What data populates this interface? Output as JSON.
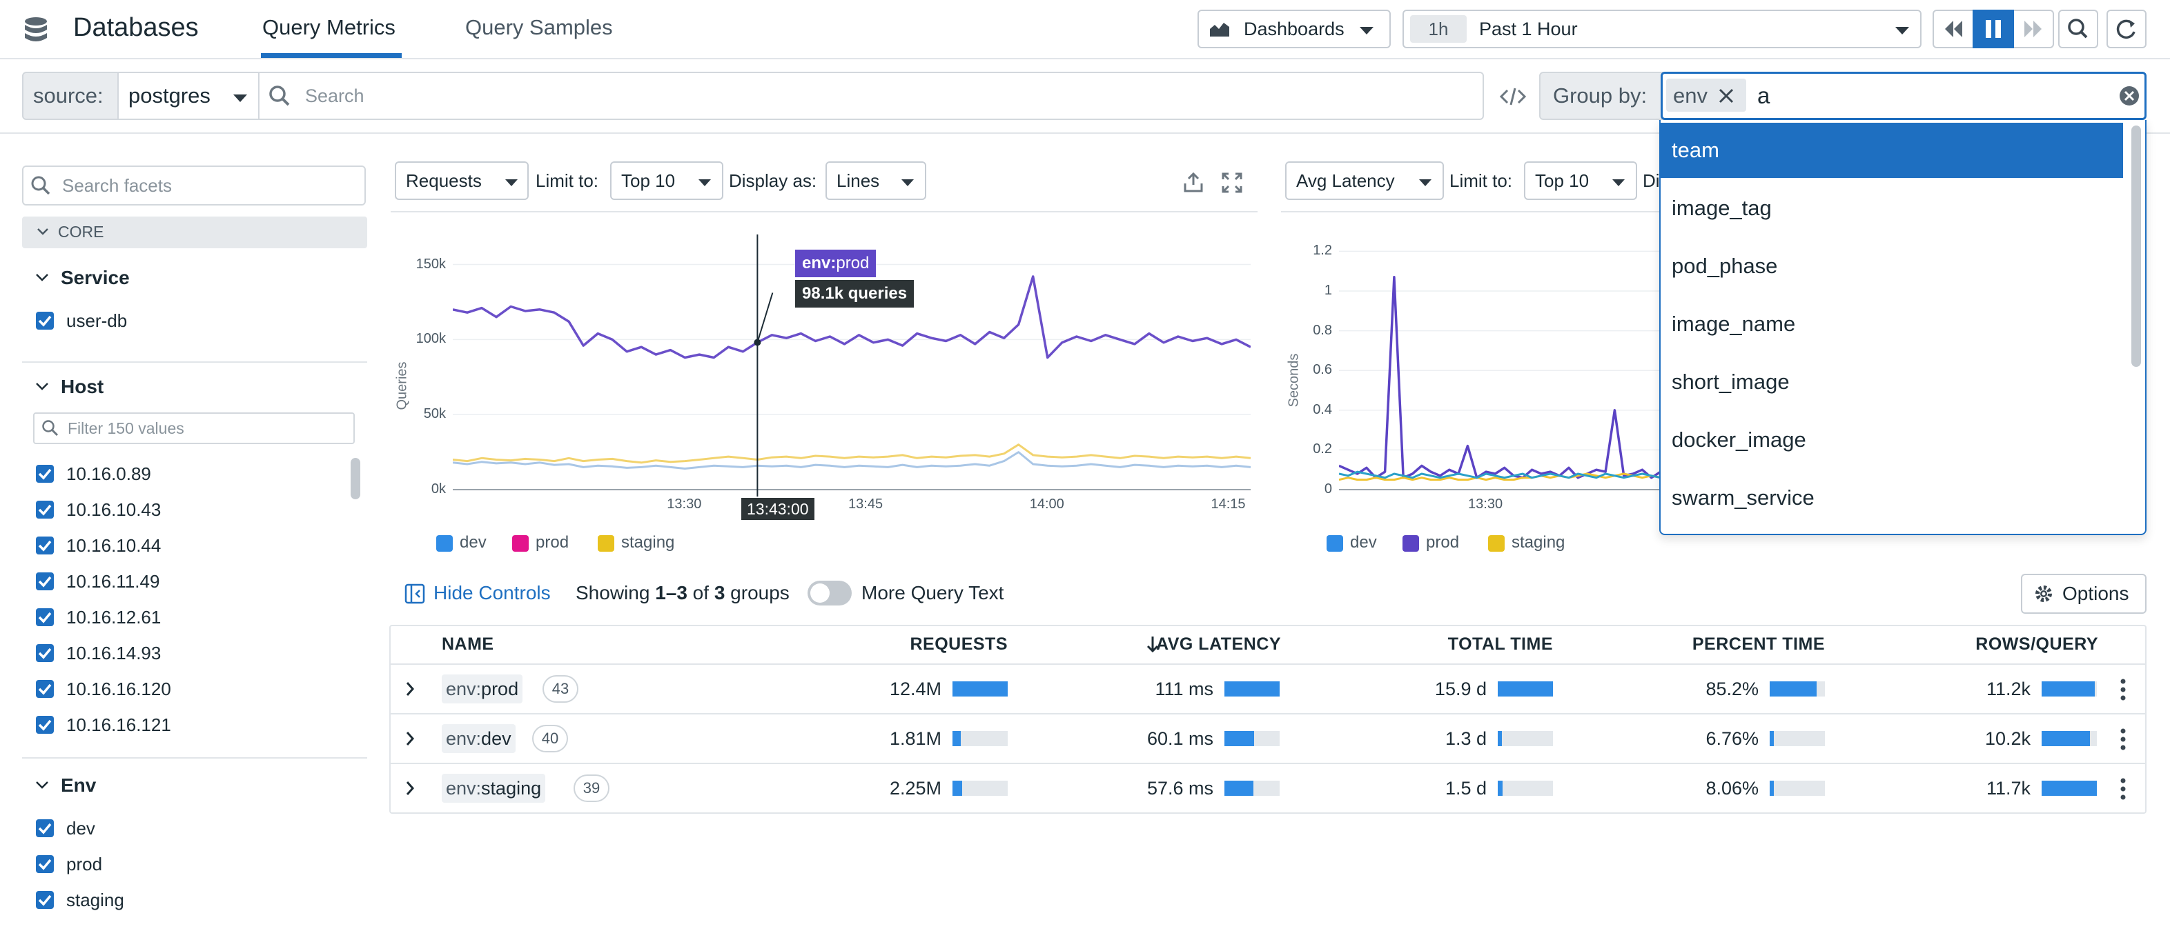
{
  "app": {
    "title": "Databases"
  },
  "nav": {
    "tabs": [
      {
        "label": "Query Metrics"
      },
      {
        "label": "Query Samples"
      }
    ]
  },
  "header": {
    "dashboards": "Dashboards",
    "time_badge": "1h",
    "time_range": "Past 1 Hour"
  },
  "filter": {
    "source_label": "source:",
    "source_value": "postgres",
    "search_placeholder": "Search",
    "group_by_label": "Group by:",
    "group_chip": "env",
    "group_query": "a"
  },
  "dropdown": {
    "items": [
      "team",
      "image_tag",
      "pod_phase",
      "image_name",
      "short_image",
      "docker_image",
      "swarm_service"
    ],
    "selected": "team"
  },
  "sidebar": {
    "search_placeholder": "Search facets",
    "core_label": "CORE",
    "service": {
      "title": "Service",
      "items": [
        "user-db"
      ]
    },
    "host": {
      "title": "Host",
      "filter_placeholder": "Filter 150 values",
      "items": [
        "10.16.0.89",
        "10.16.10.43",
        "10.16.10.44",
        "10.16.11.49",
        "10.16.12.61",
        "10.16.14.93",
        "10.16.16.120",
        "10.16.16.121"
      ]
    },
    "env": {
      "title": "Env",
      "items": [
        "dev",
        "prod",
        "staging"
      ]
    }
  },
  "chart1": {
    "metric": "Requests",
    "limit_label": "Limit to:",
    "limit_value": "Top 10",
    "display_label": "Display as:",
    "display_value": "Lines",
    "tooltip_tag_key": "env:",
    "tooltip_tag_val": "prod",
    "tooltip_value": "98.1k queries",
    "cursor_time": "13:43:00"
  },
  "chart2": {
    "metric": "Avg Latency",
    "limit_label": "Limit to:",
    "limit_value": "Top 10",
    "display_partial": "Di"
  },
  "chart_data": [
    {
      "type": "line",
      "ylabel": "Queries",
      "yticks": [
        "0k",
        "50k",
        "100k",
        "150k"
      ],
      "ylim": [
        0,
        170000
      ],
      "xticks": [
        "13:30",
        "13:45",
        "14:00",
        "14:15"
      ],
      "xlim": [
        13.18,
        14.28
      ],
      "x": [
        13.18,
        13.2,
        13.22,
        13.24,
        13.26,
        13.28,
        13.3,
        13.32,
        13.34,
        13.36,
        13.38,
        13.4,
        13.42,
        13.44,
        13.46,
        13.48,
        13.5,
        13.52,
        13.54,
        13.56,
        13.58,
        13.6,
        13.62,
        13.64,
        13.66,
        13.68,
        13.7,
        13.72,
        13.74,
        13.76,
        13.78,
        13.8,
        13.82,
        13.84,
        13.86,
        13.88,
        13.9,
        13.92,
        13.94,
        13.96,
        13.98,
        14.0,
        14.02,
        14.04,
        14.06,
        14.08,
        14.1,
        14.12,
        14.14,
        14.16,
        14.18,
        14.2,
        14.22,
        14.24,
        14.26,
        14.28
      ],
      "series": [
        {
          "name": "prod",
          "color": "#6a4fc9",
          "values": [
            120000,
            118000,
            121000,
            115000,
            122000,
            119000,
            120000,
            118000,
            112000,
            96000,
            104000,
            100000,
            92000,
            95000,
            90000,
            93000,
            88000,
            90000,
            88000,
            95000,
            92000,
            98100,
            103000,
            101000,
            104000,
            99000,
            102000,
            97000,
            103000,
            98000,
            100000,
            96000,
            104000,
            101000,
            99000,
            103000,
            97000,
            105000,
            101000,
            110000,
            142000,
            88000,
            98000,
            102000,
            99000,
            103000,
            100000,
            97000,
            104000,
            98000,
            102000,
            99000,
            101000,
            97000,
            100000,
            95000
          ]
        },
        {
          "name": "staging",
          "color": "#f2d36e",
          "values": [
            20000,
            19000,
            21000,
            20000,
            19500,
            20500,
            20000,
            19000,
            21000,
            19000,
            20000,
            20500,
            19000,
            18000,
            19500,
            18500,
            19000,
            20000,
            21000,
            22000,
            21000,
            20000,
            21500,
            22000,
            21000,
            22500,
            22000,
            21000,
            22000,
            21500,
            22000,
            23000,
            21000,
            22000,
            21500,
            22500,
            23000,
            22000,
            24000,
            30000,
            23000,
            22000,
            21500,
            22000,
            23000,
            22000,
            21000,
            22500,
            22000,
            21000,
            22000,
            21500,
            22000,
            21000,
            22000,
            21000
          ]
        },
        {
          "name": "dev",
          "color": "#a9c6e6",
          "values": [
            18000,
            17000,
            18500,
            17500,
            18000,
            17000,
            18000,
            16500,
            17000,
            15000,
            16000,
            15500,
            14500,
            15000,
            16000,
            15000,
            14000,
            15000,
            16000,
            15500,
            15000,
            16000,
            15500,
            16000,
            15000,
            16500,
            16000,
            15000,
            16000,
            15500,
            15000,
            16500,
            15000,
            16000,
            15500,
            16000,
            17000,
            16000,
            19000,
            25000,
            17000,
            16000,
            15500,
            16000,
            17000,
            16000,
            15000,
            16500,
            16000,
            15000,
            16000,
            15500,
            16000,
            15000,
            16000,
            15000
          ]
        }
      ]
    },
    {
      "type": "line",
      "ylabel": "Seconds",
      "yticks": [
        "0",
        "0.2",
        "0.4",
        "0.6",
        "0.8",
        "1",
        "1.2"
      ],
      "ylim": [
        0,
        1.25
      ],
      "xticks": [
        "13:30"
      ],
      "xlim": [
        13.18,
        13.88
      ],
      "x": [
        13.18,
        13.2,
        13.22,
        13.24,
        13.26,
        13.28,
        13.3,
        13.32,
        13.34,
        13.36,
        13.38,
        13.4,
        13.42,
        13.44,
        13.46,
        13.48,
        13.5,
        13.52,
        13.54,
        13.56,
        13.58,
        13.6,
        13.62,
        13.64,
        13.66,
        13.68,
        13.7,
        13.72,
        13.74,
        13.76,
        13.78,
        13.8,
        13.82,
        13.84,
        13.86,
        13.88
      ],
      "series": [
        {
          "name": "prod",
          "color": "#5b43c4",
          "values": [
            0.12,
            0.1,
            0.08,
            0.11,
            0.06,
            0.09,
            1.07,
            0.06,
            0.08,
            0.12,
            0.09,
            0.07,
            0.1,
            0.08,
            0.22,
            0.06,
            0.09,
            0.08,
            0.11,
            0.07,
            0.06,
            0.1,
            0.08,
            0.09,
            0.07,
            0.11,
            0.06,
            0.08,
            0.1,
            0.09,
            0.4,
            0.07,
            0.08,
            0.1,
            0.06,
            0.09
          ]
        },
        {
          "name": "staging",
          "color": "#f0c330",
          "values": [
            0.05,
            0.06,
            0.05,
            0.05,
            0.06,
            0.05,
            0.05,
            0.06,
            0.05,
            0.06,
            0.05,
            0.05,
            0.06,
            0.05,
            0.05,
            0.06,
            0.05,
            0.06,
            0.05,
            0.05,
            0.06,
            0.06,
            0.07,
            0.06,
            0.07,
            0.06,
            0.07,
            0.08,
            0.07,
            0.06,
            0.07,
            0.08,
            0.07,
            0.06,
            0.07,
            0.06
          ]
        },
        {
          "name": "dev",
          "color": "#2aa0c8",
          "values": [
            0.08,
            0.07,
            0.09,
            0.08,
            0.07,
            0.06,
            0.08,
            0.07,
            0.06,
            0.08,
            0.07,
            0.06,
            0.07,
            0.08,
            0.07,
            0.06,
            0.08,
            0.07,
            0.06,
            0.07,
            0.08,
            0.06,
            0.07,
            0.08,
            0.07,
            0.06,
            0.08,
            0.07,
            0.06,
            0.08,
            0.07,
            0.06,
            0.07,
            0.08,
            0.07,
            0.06
          ]
        }
      ]
    }
  ],
  "legend1": [
    {
      "name": "dev",
      "color": "#2f8ce6"
    },
    {
      "name": "prod",
      "color": "#e3148c"
    },
    {
      "name": "staging",
      "color": "#e8c21e"
    }
  ],
  "legend2": [
    {
      "name": "dev",
      "color": "#2f8ce6"
    },
    {
      "name": "prod",
      "color": "#5b43c4"
    },
    {
      "name": "staging",
      "color": "#e8c21e"
    }
  ],
  "controls": {
    "hide_controls": "Hide Controls",
    "showing_prefix": "Showing ",
    "showing_range": "1–3",
    "showing_of": " of ",
    "showing_count": "3",
    "showing_suffix": " groups",
    "more_query_text": "More Query Text",
    "options": "Options"
  },
  "table": {
    "headers": [
      "NAME",
      "REQUESTS",
      "AVG LATENCY",
      "TOTAL TIME",
      "PERCENT TIME",
      "ROWS/QUERY"
    ],
    "rows": [
      {
        "key": "env:",
        "val": "prod",
        "count": "43",
        "requests": "12.4M",
        "req_pct": 1.0,
        "latency": "111 ms",
        "lat_pct": 1.0,
        "total": "15.9 d",
        "tot_pct": 1.0,
        "percent": "85.2%",
        "pct_pct": 0.85,
        "rows": "11.2k",
        "rows_pct": 0.96
      },
      {
        "key": "env:",
        "val": "dev",
        "count": "40",
        "requests": "1.81M",
        "req_pct": 0.15,
        "latency": "60.1 ms",
        "lat_pct": 0.54,
        "total": "1.3 d",
        "tot_pct": 0.08,
        "percent": "6.76%",
        "pct_pct": 0.07,
        "rows": "10.2k",
        "rows_pct": 0.87
      },
      {
        "key": "env:",
        "val": "staging",
        "count": "39",
        "requests": "2.25M",
        "req_pct": 0.18,
        "latency": "57.6 ms",
        "lat_pct": 0.52,
        "total": "1.5 d",
        "tot_pct": 0.09,
        "percent": "8.06%",
        "pct_pct": 0.08,
        "rows": "11.7k",
        "rows_pct": 1.0
      }
    ]
  }
}
